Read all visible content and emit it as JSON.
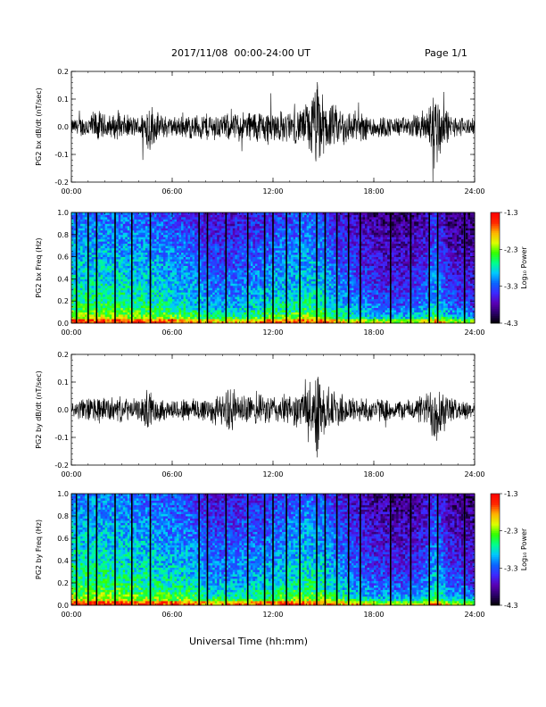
{
  "header": {
    "title": "2017/11/08  00:00-24:00 UT",
    "page": "Page 1/1"
  },
  "footer": {
    "xlabel": "Universal Time (hh:mm)"
  },
  "colors": {
    "trace": "#000000",
    "background": "#ffffff",
    "colormap": [
      "#000000",
      "#2a0066",
      "#5a00b4",
      "#3c28ff",
      "#0a64ff",
      "#00c8ff",
      "#00ff8c",
      "#32ff00",
      "#dcff00",
      "#ffb400",
      "#ff2800",
      "#ff0000"
    ]
  },
  "chart_data": [
    {
      "type": "line",
      "ylabel": "PG2 bx dB/dt (nT/sec)",
      "xlim": [
        0,
        24
      ],
      "ylim": [
        -0.2,
        0.2
      ],
      "x_ticks": [
        "00:00",
        "06:00",
        "12:00",
        "18:00",
        "24:00"
      ],
      "y_ticks": [
        "-0.2",
        "-0.1",
        "0.0",
        "0.1",
        "0.2"
      ],
      "y_tick_values": [
        -0.2,
        -0.1,
        0.0,
        0.1,
        0.2
      ],
      "envelope": {
        "hours": [
          0,
          1,
          1.5,
          2,
          3,
          4,
          4.4,
          4.6,
          5,
          6,
          7,
          7.5,
          8,
          9,
          10,
          11,
          12,
          13,
          13.8,
          14.3,
          14.7,
          15,
          15.5,
          16,
          17,
          18,
          19,
          20,
          20.5,
          21.2,
          21.6,
          22,
          22.5,
          23,
          23.5,
          24
        ],
        "amplitude": [
          0.03,
          0.05,
          0.07,
          0.05,
          0.05,
          0.04,
          0.08,
          0.12,
          0.06,
          0.04,
          0.05,
          0.05,
          0.06,
          0.05,
          0.06,
          0.07,
          0.07,
          0.06,
          0.08,
          0.13,
          0.2,
          0.12,
          0.09,
          0.08,
          0.06,
          0.05,
          0.04,
          0.04,
          0.05,
          0.08,
          0.18,
          0.12,
          0.05,
          0.04,
          0.04,
          0.03
        ]
      }
    },
    {
      "type": "heatmap",
      "ylabel": "PG2 bx Freq (Hz)",
      "xlim": [
        0,
        24
      ],
      "ylim": [
        0,
        1
      ],
      "x_ticks": [
        "00:00",
        "06:00",
        "12:00",
        "18:00",
        "24:00"
      ],
      "y_ticks": [
        "0.0",
        "0.2",
        "0.4",
        "0.6",
        "0.8",
        "1.0"
      ],
      "y_tick_values": [
        0,
        0.2,
        0.4,
        0.6,
        0.8,
        1.0
      ],
      "colorbar": {
        "label": "Log₁₀ Power",
        "ticks": [
          "-1.3",
          "-2.3",
          "-3.3",
          "-4.3"
        ],
        "range": [
          -4.3,
          -1.3
        ]
      },
      "gap_hours": [
        0.3,
        1.0,
        1.5,
        2.6,
        3.6,
        4.7,
        7.6,
        8.1,
        9.2,
        10.5,
        11.5,
        12.0,
        12.8,
        13.6,
        14.6,
        15.1,
        15.8,
        16.5,
        17.2,
        19.0,
        20.2,
        21.3,
        21.8,
        23.4
      ],
      "power_profile": {
        "hours": [
          0,
          3,
          5,
          7,
          8,
          9,
          10,
          11,
          12,
          13,
          14,
          15,
          16,
          17,
          18,
          19,
          20,
          21,
          21.7,
          22.5,
          23.5,
          24
        ],
        "level": [
          0.58,
          0.57,
          0.54,
          0.5,
          0.44,
          0.42,
          0.44,
          0.47,
          0.5,
          0.52,
          0.55,
          0.52,
          0.44,
          0.4,
          0.35,
          0.33,
          0.33,
          0.38,
          0.48,
          0.34,
          0.32,
          0.3
        ]
      }
    },
    {
      "type": "line",
      "ylabel": "PG2 by dB/dt (nT/sec)",
      "xlim": [
        0,
        24
      ],
      "ylim": [
        -0.2,
        0.2
      ],
      "x_ticks": [
        "00:00",
        "06:00",
        "12:00",
        "18:00",
        "24:00"
      ],
      "y_ticks": [
        "-0.2",
        "-0.1",
        "0.0",
        "0.1",
        "0.2"
      ],
      "y_tick_values": [
        -0.2,
        -0.1,
        0.0,
        0.1,
        0.2
      ],
      "envelope": {
        "hours": [
          0,
          1,
          1.5,
          2,
          3,
          4,
          4.4,
          4.6,
          5,
          6,
          7,
          7.5,
          8,
          9,
          9.5,
          10,
          11,
          12,
          13,
          13.8,
          14.3,
          14.7,
          15,
          15.5,
          16,
          17,
          18,
          19,
          20,
          20.5,
          21.2,
          21.6,
          22,
          22.5,
          23,
          23.5,
          24
        ],
        "amplitude": [
          0.03,
          0.05,
          0.06,
          0.05,
          0.05,
          0.04,
          0.07,
          0.09,
          0.05,
          0.04,
          0.05,
          0.05,
          0.06,
          0.06,
          0.1,
          0.06,
          0.06,
          0.06,
          0.06,
          0.08,
          0.12,
          0.2,
          0.11,
          0.08,
          0.07,
          0.05,
          0.05,
          0.04,
          0.04,
          0.05,
          0.07,
          0.16,
          0.1,
          0.05,
          0.04,
          0.04,
          0.03
        ]
      }
    },
    {
      "type": "heatmap",
      "ylabel": "PG2 by Freq (Hz)",
      "xlim": [
        0,
        24
      ],
      "ylim": [
        0,
        1
      ],
      "x_ticks": [
        "00:00",
        "06:00",
        "12:00",
        "18:00",
        "24:00"
      ],
      "y_ticks": [
        "0.0",
        "0.2",
        "0.4",
        "0.6",
        "0.8",
        "1.0"
      ],
      "y_tick_values": [
        0,
        0.2,
        0.4,
        0.6,
        0.8,
        1.0
      ],
      "colorbar": {
        "label": "Log₁₀ Power",
        "ticks": [
          "-1.3",
          "-2.3",
          "-3.3",
          "-4.3"
        ],
        "range": [
          -4.3,
          -1.3
        ]
      },
      "gap_hours": [
        0.3,
        1.0,
        1.5,
        2.6,
        3.6,
        4.7,
        7.6,
        8.1,
        9.2,
        10.5,
        11.5,
        12.0,
        12.8,
        13.6,
        14.6,
        15.1,
        15.8,
        16.5,
        17.2,
        19.0,
        20.2,
        21.3,
        21.8,
        23.4
      ],
      "power_profile": {
        "hours": [
          0,
          3,
          5,
          7,
          8,
          9,
          10,
          11,
          12,
          13,
          14,
          15,
          16,
          17,
          18,
          19,
          20,
          21,
          21.7,
          22.5,
          23.5,
          24
        ],
        "level": [
          0.6,
          0.58,
          0.55,
          0.52,
          0.46,
          0.44,
          0.46,
          0.48,
          0.5,
          0.53,
          0.56,
          0.53,
          0.46,
          0.41,
          0.36,
          0.34,
          0.33,
          0.38,
          0.5,
          0.35,
          0.33,
          0.31
        ]
      }
    }
  ]
}
